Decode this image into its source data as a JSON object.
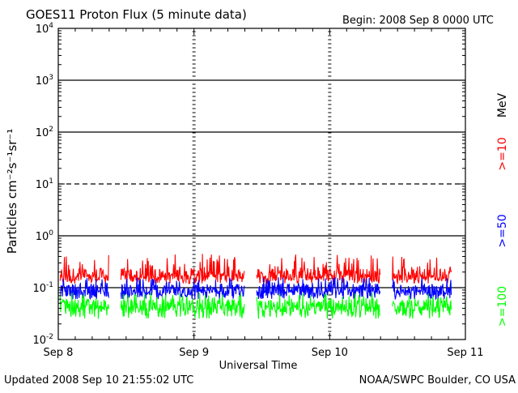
{
  "header": {
    "title": "GOES11 Proton Flux (5 minute data)",
    "begin": "Begin: 2008 Sep 8 0000 UTC"
  },
  "footer": {
    "updated": "Updated 2008 Sep 10 21:55:02 UTC",
    "credit": "NOAA/SWPC Boulder, CO USA"
  },
  "chart_data": {
    "type": "line",
    "title": "GOES11 Proton Flux (5 minute data)",
    "xlabel": "Universal Time",
    "ylabel": "Particles cm⁻²s⁻¹sr⁻¹",
    "yscale": "log",
    "ylim": [
      0.01,
      10000
    ],
    "xlim": [
      "2008-09-08",
      "2008-09-11"
    ],
    "x_ticks": [
      "Sep 8",
      "Sep 9",
      "Sep 10",
      "Sep 11"
    ],
    "y_ticks": [
      {
        "base": "10",
        "exp": "-2",
        "value": 0.01
      },
      {
        "base": "10",
        "exp": "-1",
        "value": 0.1
      },
      {
        "base": "10",
        "exp": "0",
        "value": 1
      },
      {
        "base": "10",
        "exp": "1",
        "value": 10
      },
      {
        "base": "10",
        "exp": "2",
        "value": 100
      },
      {
        "base": "10",
        "exp": "3",
        "value": 1000
      },
      {
        "base": "10",
        "exp": "4",
        "value": 10000
      }
    ],
    "reference_lines": [
      {
        "value": 0.1,
        "style": "solid"
      },
      {
        "value": 1,
        "style": "solid"
      },
      {
        "value": 10,
        "style": "dashed"
      },
      {
        "value": 100,
        "style": "solid"
      },
      {
        "value": 1000,
        "style": "solid"
      }
    ],
    "legend_placement": "right, vertical",
    "legend_unit": "MeV",
    "data_gaps": [
      {
        "start": "2008-09-08 09:00",
        "end": "2008-09-08 11:00"
      },
      {
        "start": "2008-09-09 09:00",
        "end": "2008-09-09 11:00"
      },
      {
        "start": "2008-09-10 09:00",
        "end": "2008-09-10 11:00"
      }
    ],
    "series": [
      {
        "name": ">=10",
        "color": "#ff0000",
        "typical_value": 0.18,
        "range": [
          0.12,
          0.45
        ]
      },
      {
        "name": ">=50",
        "color": "#0000ff",
        "typical_value": 0.09,
        "range": [
          0.06,
          0.16
        ]
      },
      {
        "name": ">=100",
        "color": "#00ff00",
        "typical_value": 0.045,
        "range": [
          0.025,
          0.08
        ]
      }
    ]
  }
}
